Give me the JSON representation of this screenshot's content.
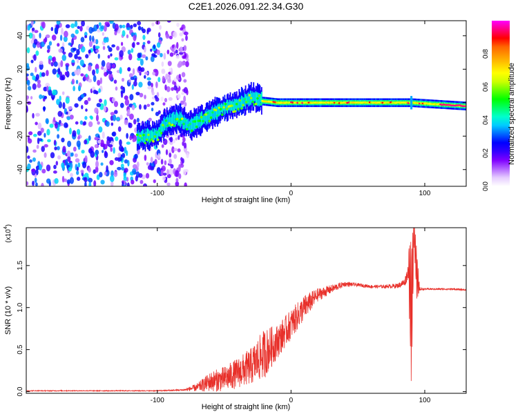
{
  "page_title": "C2E1.2026.091.22.34.G30",
  "chart_data": [
    {
      "type": "heatmap",
      "title": "C2E1.2026.091.22.34.G30",
      "xlabel": "Height of straight line (km)",
      "ylabel": "Frequency (Hz)",
      "xlim": [
        -198,
        131
      ],
      "ylim": [
        -50,
        49
      ],
      "x_ticks": [
        -100,
        0,
        100
      ],
      "x_tick_labels": [
        "-100",
        "0",
        "100"
      ],
      "y_ticks": [
        -40,
        -20,
        0,
        20,
        40
      ],
      "y_tick_labels": [
        "-40",
        "-20",
        "0",
        "20",
        "40"
      ],
      "colorbar": {
        "label": "Normalized spectral amplitude",
        "range": [
          0.0,
          1.0
        ],
        "ticks": [
          0.0,
          0.2,
          0.4,
          0.6,
          0.8
        ],
        "tick_labels": [
          "0.0",
          "0.2",
          "0.4",
          "0.6",
          "0.8"
        ],
        "colormap": [
          "#ffffff",
          "#e6ccff",
          "#b366ff",
          "#7f00ff",
          "#3300ff",
          "#0000ff",
          "#0066ff",
          "#00ccff",
          "#00ffcc",
          "#00ff66",
          "#00ff00",
          "#66ff00",
          "#ccff00",
          "#ffff00",
          "#ffcc00",
          "#ff9900",
          "#ff6600",
          "#ff0000",
          "#ff0080",
          "#ff00ff"
        ]
      },
      "features": {
        "noise_region_km": [
          -198,
          -77
        ],
        "noise_amplitude_range": [
          0.05,
          0.4
        ],
        "ramp_points": [
          [
            -115,
            -22
          ],
          [
            -100,
            -20
          ],
          [
            -95,
            -14
          ],
          [
            -85,
            -10
          ],
          [
            -75,
            -15
          ],
          [
            -60,
            -8
          ],
          [
            -50,
            -4
          ],
          [
            -40,
            -2
          ],
          [
            -30,
            2
          ],
          [
            -22,
            1
          ],
          [
            -10,
            0
          ],
          [
            0,
            0
          ],
          [
            50,
            0
          ],
          [
            90,
            0
          ],
          [
            131,
            -2
          ]
        ],
        "ridge_peak_amplitude": 0.95,
        "spike_height_km": 90
      }
    },
    {
      "type": "line",
      "xlabel": "Height of straight line (km)",
      "ylabel": "SNR (10 * v/v)",
      "y_scale_note": "(x10",
      "y_scale_exponent": "4",
      "xlim": [
        -198,
        131
      ],
      "ylim": [
        -0.02,
        1.95
      ],
      "x_ticks": [
        -100,
        0,
        100
      ],
      "x_tick_labels": [
        "-100",
        "0",
        "100"
      ],
      "y_ticks": [
        0.0,
        0.5,
        1.0,
        1.5
      ],
      "y_tick_labels": [
        "0.0",
        "0.5",
        "1.0",
        "1.5"
      ],
      "series": [
        {
          "name": "SNR",
          "color": "#e8302a",
          "x": [
            -198,
            -100,
            -80,
            -70,
            -60,
            -50,
            -40,
            -30,
            -20,
            -10,
            0,
            10,
            20,
            30,
            40,
            50,
            60,
            70,
            80,
            85,
            88,
            90,
            92,
            94,
            96,
            100,
            110,
            120,
            131
          ],
          "y": [
            0.01,
            0.01,
            0.02,
            0.05,
            0.12,
            0.15,
            0.22,
            0.3,
            0.45,
            0.6,
            0.8,
            1.0,
            1.15,
            1.22,
            1.28,
            1.27,
            1.25,
            1.25,
            1.26,
            1.3,
            1.45,
            0.9,
            1.9,
            1.4,
            1.22,
            1.22,
            1.22,
            1.22,
            1.21
          ],
          "noise_amplitude": [
            0.005,
            0.005,
            0.01,
            0.05,
            0.12,
            0.15,
            0.18,
            0.22,
            0.3,
            0.2,
            0.18,
            0.15,
            0.08,
            0.05,
            0.03,
            0.02,
            0.02,
            0.02,
            0.03,
            0.05,
            0.1,
            0.3,
            0.05,
            0.1,
            0.02,
            0.01,
            0.01,
            0.01,
            0.01
          ]
        }
      ]
    }
  ]
}
